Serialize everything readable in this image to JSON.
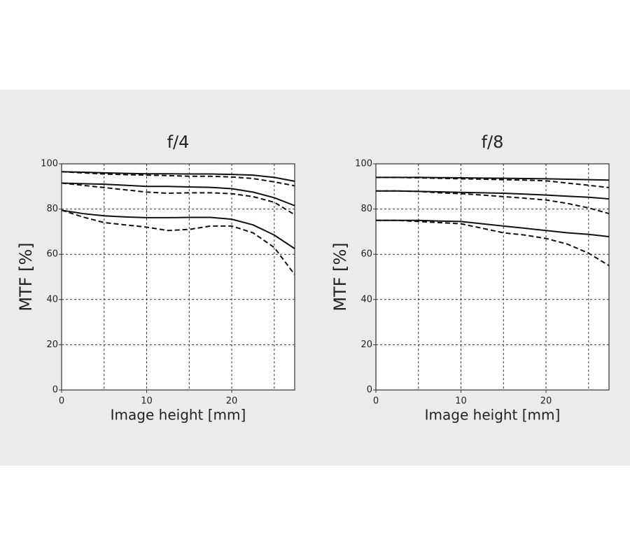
{
  "chart_data": [
    {
      "type": "line",
      "title": "f/4",
      "x_label": "Image height [mm]",
      "y_label": "MTF [%]",
      "x": [
        0,
        2.5,
        5,
        7.5,
        10,
        12.5,
        15,
        17.5,
        20,
        22.5,
        25,
        27.4
      ],
      "series": [
        {
          "color": "#111111",
          "style": "solid",
          "values": [
            96.5,
            96.3,
            96,
            95.8,
            95.6,
            95.6,
            95.5,
            95.5,
            95.3,
            95,
            94,
            92.3
          ]
        },
        {
          "color": "#111111",
          "style": "dashed",
          "values": [
            96.5,
            96,
            95.5,
            95.2,
            95,
            94.8,
            94.5,
            94.5,
            94.2,
            93.5,
            92,
            90.3
          ]
        },
        {
          "color": "#111111",
          "style": "solid",
          "values": [
            91.5,
            91.2,
            91,
            90.5,
            90,
            90,
            89.8,
            89.6,
            89,
            87.5,
            85,
            81.5
          ]
        },
        {
          "color": "#111111",
          "style": "dashed",
          "values": [
            91.5,
            90.5,
            89.5,
            88.5,
            87.5,
            87,
            87.2,
            87.2,
            86.8,
            85.5,
            83,
            77.5
          ]
        },
        {
          "color": "#111111",
          "style": "solid",
          "values": [
            79.5,
            78,
            77,
            76.5,
            76.2,
            76.2,
            76.3,
            76.3,
            75.5,
            73,
            68.5,
            62.5
          ]
        },
        {
          "color": "#111111",
          "style": "dashed",
          "values": [
            79.5,
            76.5,
            74,
            73,
            72,
            70.5,
            71,
            72.5,
            72.5,
            69.5,
            63,
            51
          ]
        }
      ],
      "xlim": [
        0,
        27.4
      ],
      "ylim": [
        0,
        100
      ],
      "xticks": [
        0,
        10,
        20
      ],
      "x_grid": [
        5,
        10,
        15,
        20,
        25
      ],
      "yticks": [
        0,
        20,
        40,
        60,
        80,
        100
      ],
      "grid": true
    },
    {
      "type": "line",
      "title": "f/8",
      "x_label": "Image height [mm]",
      "y_label": "MTF [%]",
      "x": [
        0,
        2.5,
        5,
        7.5,
        10,
        12.5,
        15,
        17.5,
        20,
        22.5,
        25,
        27.4
      ],
      "series": [
        {
          "color": "#111111",
          "style": "solid",
          "values": [
            94,
            94,
            94,
            93.9,
            93.8,
            93.7,
            93.6,
            93.5,
            93.4,
            93.2,
            93,
            92.8
          ]
        },
        {
          "color": "#111111",
          "style": "dashed",
          "values": [
            94,
            94,
            93.8,
            93.6,
            93.4,
            93.2,
            93,
            92.8,
            92.5,
            91.5,
            90.5,
            89.5
          ]
        },
        {
          "color": "#111111",
          "style": "solid",
          "values": [
            88,
            88,
            87.8,
            87.6,
            87.4,
            87.2,
            87,
            86.6,
            86.2,
            85.7,
            85.2,
            84.5
          ]
        },
        {
          "color": "#111111",
          "style": "dashed",
          "values": [
            88,
            88,
            87.8,
            87.2,
            86.8,
            86.2,
            85.5,
            84.8,
            84,
            82.5,
            80.5,
            78
          ]
        },
        {
          "color": "#111111",
          "style": "solid",
          "values": [
            75,
            75,
            75,
            74.7,
            74.5,
            73.5,
            72.5,
            71.5,
            70.5,
            69.5,
            68.8,
            67.8
          ]
        },
        {
          "color": "#111111",
          "style": "dashed",
          "values": [
            75,
            75,
            74.5,
            74,
            73.5,
            71.5,
            69.5,
            68.5,
            67,
            64.5,
            60.5,
            55
          ]
        }
      ],
      "xlim": [
        0,
        27.4
      ],
      "ylim": [
        0,
        100
      ],
      "xticks": [
        0,
        10,
        20
      ],
      "x_grid": [
        5,
        10,
        15,
        20,
        25
      ],
      "yticks": [
        0,
        20,
        40,
        60,
        80,
        100
      ],
      "grid": true
    }
  ]
}
